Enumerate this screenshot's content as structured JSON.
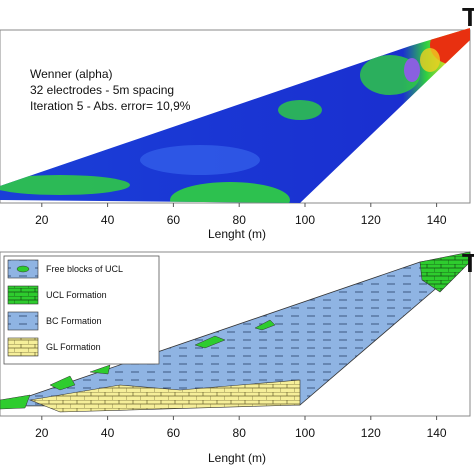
{
  "panels": [
    {
      "label": "T",
      "annotation": [
        "Wenner (alpha)",
        "32 electrodes - 5m spacing",
        "Iteration 5 - Abs. error= 10,9%"
      ],
      "x_axis": {
        "label": "Lenght (m)",
        "ticks": [
          20,
          40,
          60,
          80,
          100,
          120,
          140
        ]
      }
    },
    {
      "label": "T",
      "legend": [
        "Free blocks of UCL",
        "UCL Formation",
        "BC Formation",
        "GL Formation"
      ],
      "x_axis": {
        "label": "Lenght (m)",
        "ticks": [
          20,
          40,
          60,
          80,
          100,
          120,
          140
        ]
      }
    }
  ]
}
